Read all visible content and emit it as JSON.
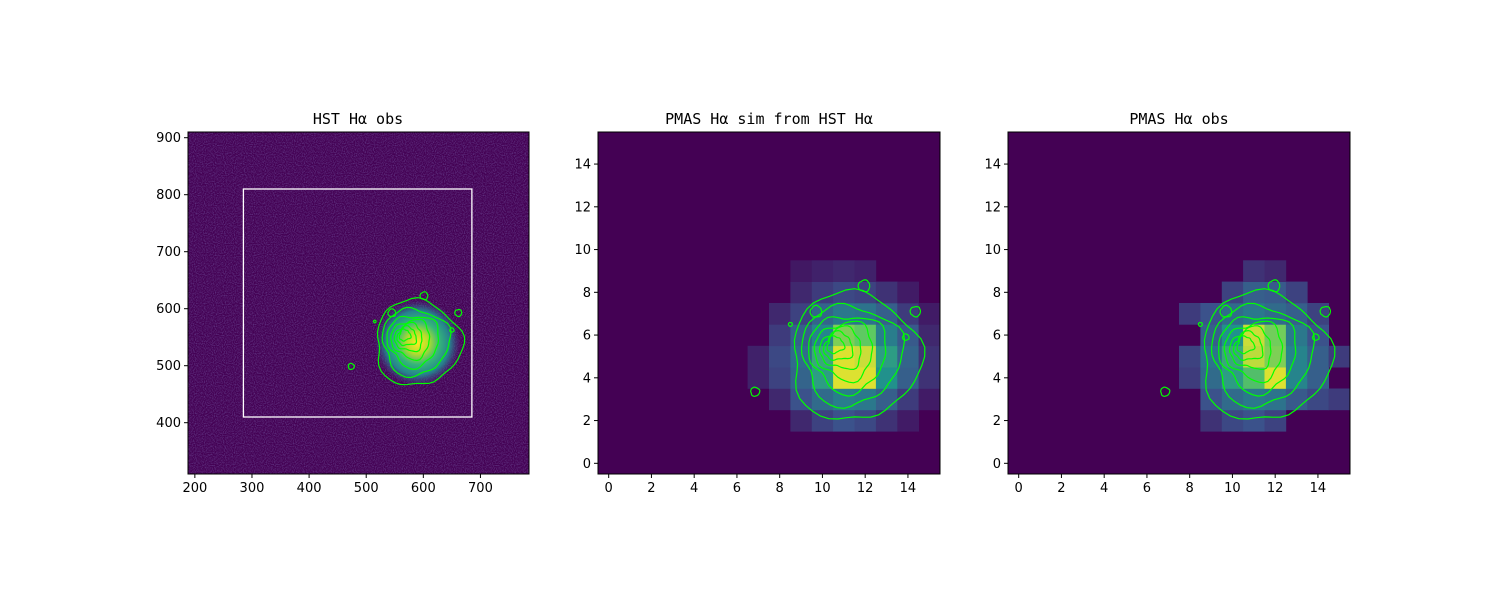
{
  "colors": {
    "background": "#440154",
    "contour": "#00ff00",
    "box": "#ffffff",
    "axis": "#000000"
  },
  "chart_data": [
    {
      "type": "heatmap",
      "title": "HST Hα obs",
      "xlabel": "",
      "ylabel": "",
      "xlim": [
        188,
        785
      ],
      "ylim": [
        310,
        910
      ],
      "xticks": [
        200,
        300,
        400,
        500,
        600,
        700
      ],
      "yticks": [
        400,
        500,
        600,
        700,
        800,
        900
      ],
      "colormap": "viridis",
      "box": {
        "x0": 285,
        "x1": 685,
        "y0": 410,
        "y1": 810
      },
      "source": {
        "center": [
          590,
          540
        ],
        "radius": 75
      },
      "grid": false,
      "legend": "none"
    },
    {
      "type": "heatmap",
      "title": "PMAS Hα sim from HST Hα",
      "xlabel": "",
      "ylabel": "",
      "xlim": [
        -0.5,
        15.5
      ],
      "ylim": [
        -0.5,
        15.5
      ],
      "xticks": [
        0,
        2,
        4,
        6,
        8,
        10,
        12,
        14
      ],
      "yticks": [
        0,
        2,
        4,
        6,
        8,
        10,
        12,
        14
      ],
      "colormap": "viridis",
      "grid_size": 16,
      "cells": [
        [
          9,
          2,
          0.12
        ],
        [
          10,
          2,
          0.2
        ],
        [
          11,
          2,
          0.25
        ],
        [
          12,
          2,
          0.22
        ],
        [
          13,
          2,
          0.15
        ],
        [
          14,
          2,
          0.08
        ],
        [
          8,
          3,
          0.12
        ],
        [
          9,
          3,
          0.25
        ],
        [
          10,
          3,
          0.35
        ],
        [
          11,
          3,
          0.42
        ],
        [
          12,
          3,
          0.4
        ],
        [
          13,
          3,
          0.3
        ],
        [
          14,
          3,
          0.18
        ],
        [
          15,
          3,
          0.08
        ],
        [
          7,
          4,
          0.1
        ],
        [
          8,
          4,
          0.2
        ],
        [
          9,
          4,
          0.32
        ],
        [
          10,
          4,
          0.55
        ],
        [
          11,
          4,
          0.95
        ],
        [
          12,
          4,
          0.95
        ],
        [
          13,
          4,
          0.5
        ],
        [
          14,
          4,
          0.3
        ],
        [
          15,
          4,
          0.15
        ],
        [
          7,
          5,
          0.1
        ],
        [
          8,
          5,
          0.22
        ],
        [
          9,
          5,
          0.35
        ],
        [
          10,
          5,
          0.6
        ],
        [
          11,
          5,
          0.95
        ],
        [
          12,
          5,
          0.92
        ],
        [
          13,
          5,
          0.55
        ],
        [
          14,
          5,
          0.32
        ],
        [
          15,
          5,
          0.15
        ],
        [
          8,
          6,
          0.18
        ],
        [
          9,
          6,
          0.3
        ],
        [
          10,
          6,
          0.45
        ],
        [
          11,
          6,
          0.8
        ],
        [
          12,
          6,
          0.75
        ],
        [
          13,
          6,
          0.42
        ],
        [
          14,
          6,
          0.28
        ],
        [
          15,
          6,
          0.12
        ],
        [
          8,
          7,
          0.12
        ],
        [
          9,
          7,
          0.2
        ],
        [
          10,
          7,
          0.32
        ],
        [
          11,
          7,
          0.4
        ],
        [
          12,
          7,
          0.38
        ],
        [
          13,
          7,
          0.3
        ],
        [
          14,
          7,
          0.18
        ],
        [
          15,
          7,
          0.08
        ],
        [
          9,
          8,
          0.12
        ],
        [
          10,
          8,
          0.18
        ],
        [
          11,
          8,
          0.22
        ],
        [
          12,
          8,
          0.2
        ],
        [
          13,
          8,
          0.15
        ],
        [
          14,
          8,
          0.08
        ],
        [
          9,
          9,
          0.07
        ],
        [
          10,
          9,
          0.1
        ],
        [
          11,
          9,
          0.12
        ],
        [
          12,
          9,
          0.1
        ]
      ],
      "source": {
        "center": [
          11.5,
          5.0
        ],
        "radius": 3.0
      },
      "grid": false,
      "legend": "none"
    },
    {
      "type": "heatmap",
      "title": "PMAS Hα obs",
      "xlabel": "",
      "ylabel": "",
      "xlim": [
        -0.5,
        15.5
      ],
      "ylim": [
        -0.5,
        15.5
      ],
      "xticks": [
        0,
        2,
        4,
        6,
        8,
        10,
        12,
        14
      ],
      "yticks": [
        0,
        2,
        4,
        6,
        8,
        10,
        12,
        14
      ],
      "colormap": "viridis",
      "grid_size": 16,
      "cells": [
        [
          9,
          2,
          0.15
        ],
        [
          10,
          2,
          0.22
        ],
        [
          11,
          2,
          0.25
        ],
        [
          12,
          2,
          0.2
        ],
        [
          9,
          3,
          0.25
        ],
        [
          10,
          3,
          0.35
        ],
        [
          11,
          3,
          0.4
        ],
        [
          12,
          3,
          0.38
        ],
        [
          13,
          3,
          0.28
        ],
        [
          14,
          3,
          0.22
        ],
        [
          15,
          3,
          0.18
        ],
        [
          8,
          4,
          0.18
        ],
        [
          9,
          4,
          0.35
        ],
        [
          10,
          4,
          0.55
        ],
        [
          11,
          4,
          0.7
        ],
        [
          12,
          4,
          0.95
        ],
        [
          13,
          4,
          0.45
        ],
        [
          14,
          4,
          0.3
        ],
        [
          8,
          5,
          0.2
        ],
        [
          9,
          5,
          0.38
        ],
        [
          10,
          5,
          0.6
        ],
        [
          11,
          5,
          0.9
        ],
        [
          12,
          5,
          0.8
        ],
        [
          13,
          5,
          0.45
        ],
        [
          14,
          5,
          0.3
        ],
        [
          15,
          5,
          0.18
        ],
        [
          9,
          6,
          0.3
        ],
        [
          10,
          6,
          0.5
        ],
        [
          11,
          6,
          0.92
        ],
        [
          12,
          6,
          0.78
        ],
        [
          13,
          6,
          0.4
        ],
        [
          14,
          6,
          0.25
        ],
        [
          8,
          7,
          0.18
        ],
        [
          9,
          7,
          0.25
        ],
        [
          10,
          7,
          0.35
        ],
        [
          11,
          7,
          0.4
        ],
        [
          12,
          7,
          0.35
        ],
        [
          13,
          7,
          0.3
        ],
        [
          14,
          7,
          0.2
        ],
        [
          10,
          8,
          0.2
        ],
        [
          11,
          8,
          0.3
        ],
        [
          12,
          8,
          0.28
        ],
        [
          13,
          8,
          0.2
        ],
        [
          11,
          9,
          0.15
        ],
        [
          12,
          9,
          0.12
        ]
      ],
      "source": {
        "center": [
          11.5,
          5.0
        ],
        "radius": 3.0
      },
      "grid": false,
      "legend": "none"
    }
  ]
}
